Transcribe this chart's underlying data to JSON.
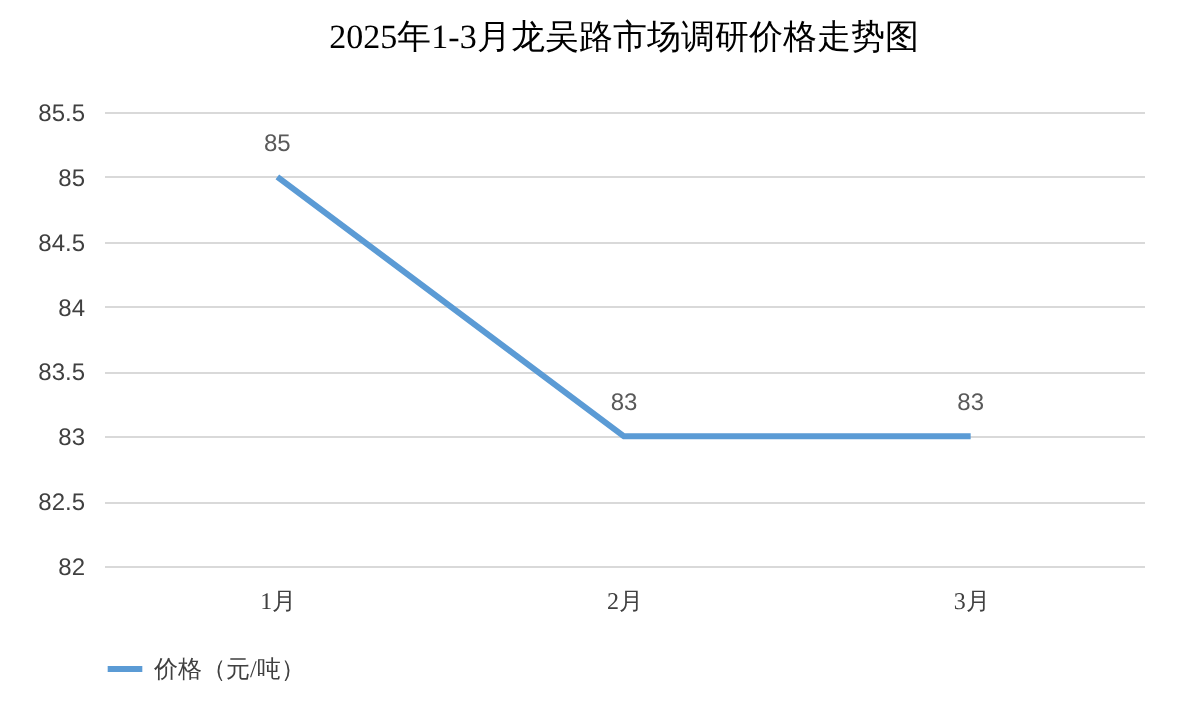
{
  "chart_data": {
    "type": "line",
    "title": "2025年1-3月龙吴路市场调研价格走势图",
    "categories": [
      "1月",
      "2月",
      "3月"
    ],
    "series": [
      {
        "name": "价格（元/吨）",
        "color": "#5b9bd5",
        "values": [
          85,
          83,
          83
        ]
      }
    ],
    "ylim": [
      82,
      85.5
    ],
    "yticks": [
      82,
      82.5,
      83,
      83.5,
      84,
      84.5,
      85,
      85.5
    ],
    "grid": "y",
    "legend": "bottom",
    "data_labels": true
  }
}
